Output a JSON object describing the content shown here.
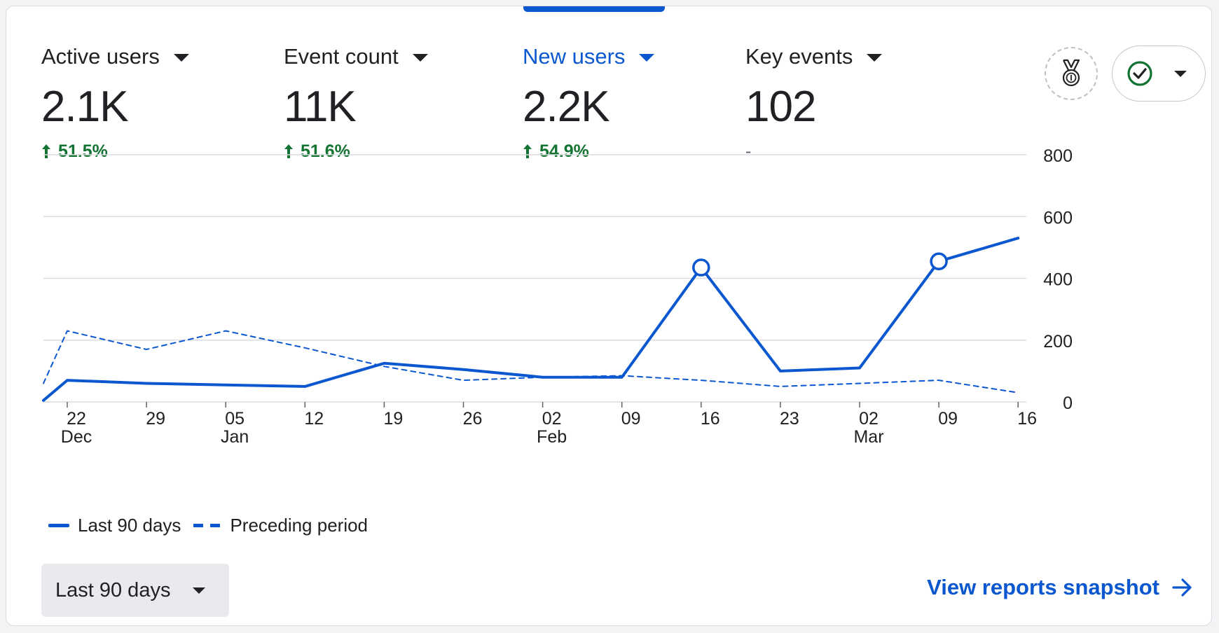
{
  "colors": {
    "accent": "#0b57d0",
    "positive": "#137333",
    "text": "#202124",
    "grid": "#dadce0"
  },
  "metrics": [
    {
      "label": "Active users",
      "value": "2.1K",
      "change": "51.5%",
      "trend": "up",
      "active": false
    },
    {
      "label": "Event count",
      "value": "11K",
      "change": "51.6%",
      "trend": "up",
      "active": false
    },
    {
      "label": "New users",
      "value": "2.2K",
      "change": "54.9%",
      "trend": "up",
      "active": true
    },
    {
      "label": "Key events",
      "value": "102",
      "change": "-",
      "trend": "none",
      "active": false
    }
  ],
  "header_icons": {
    "badge": "medal-icon",
    "status": "check-circle-icon"
  },
  "chart_data": {
    "type": "line",
    "ylim": [
      0,
      800
    ],
    "yticks": [
      "0",
      "200",
      "400",
      "600",
      "800"
    ],
    "x_tick_labels": [
      {
        "day": "22",
        "month": "Dec"
      },
      {
        "day": "29",
        "month": ""
      },
      {
        "day": "05",
        "month": "Jan"
      },
      {
        "day": "12",
        "month": ""
      },
      {
        "day": "19",
        "month": ""
      },
      {
        "day": "26",
        "month": ""
      },
      {
        "day": "02",
        "month": "Feb"
      },
      {
        "day": "09",
        "month": ""
      },
      {
        "day": "16",
        "month": ""
      },
      {
        "day": "23",
        "month": ""
      },
      {
        "day": "02",
        "month": "Mar"
      },
      {
        "day": "09",
        "month": ""
      },
      {
        "day": "16",
        "month": ""
      }
    ],
    "x_dates": [
      "Dec 19",
      "Dec 22",
      "Dec 29",
      "Jan 05",
      "Jan 12",
      "Jan 19",
      "Jan 26",
      "Feb 02",
      "Feb 09",
      "Feb 16",
      "Feb 23",
      "Mar 02",
      "Mar 09",
      "Mar 16"
    ],
    "series": [
      {
        "name": "Last 90 days",
        "style": "solid",
        "values": [
          5,
          70,
          60,
          55,
          50,
          125,
          105,
          80,
          80,
          435,
          100,
          110,
          455,
          530
        ],
        "markers": [
          "Feb 16",
          "Mar 09"
        ]
      },
      {
        "name": "Preceding period",
        "style": "dashed",
        "values": [
          60,
          230,
          170,
          230,
          175,
          115,
          70,
          80,
          85,
          70,
          50,
          60,
          70,
          30
        ]
      }
    ],
    "grid": true,
    "legend_position": "bottom-left"
  },
  "footer": {
    "range_label": "Last 90 days",
    "view_link": "View reports snapshot"
  }
}
